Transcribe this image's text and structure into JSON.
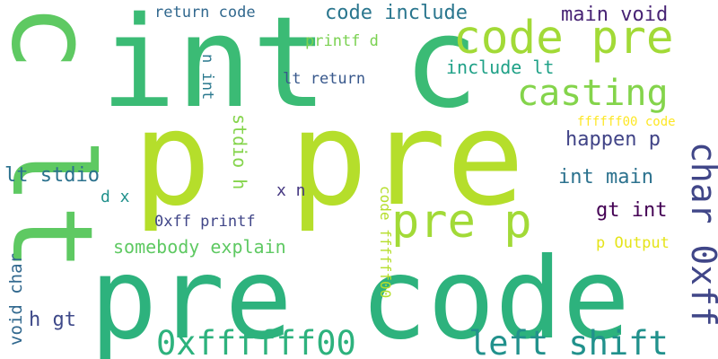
{
  "words": [
    {
      "text": "p pre",
      "color": "#b5de2b"
    },
    {
      "text": "pre code",
      "color": "#2db27d"
    },
    {
      "text": "int c",
      "color": "#3bbb75"
    },
    {
      "text": "c lt",
      "color": "#5ec962"
    },
    {
      "text": "code pre",
      "color": "#a2da37"
    },
    {
      "text": "pre p",
      "color": "#a2da37"
    },
    {
      "text": "casting",
      "color": "#84d44b"
    },
    {
      "text": "char 0xff",
      "color": "#404688"
    },
    {
      "text": "0xffffff00",
      "color": "#2db27d"
    },
    {
      "text": "left shift",
      "color": "#21918c"
    },
    {
      "text": "code include",
      "color": "#2a768e"
    },
    {
      "text": "main void",
      "color": "#482475"
    },
    {
      "text": "happen p",
      "color": "#414487"
    },
    {
      "text": "int main",
      "color": "#2c728e"
    },
    {
      "text": "gt int",
      "color": "#440154"
    },
    {
      "text": "include lt",
      "color": "#1fa187"
    },
    {
      "text": "somebody explain",
      "color": "#5ec962"
    },
    {
      "text": "lt stdio",
      "color": "#2c728e"
    },
    {
      "text": "return code",
      "color": "#31688e"
    },
    {
      "text": "printf d",
      "color": "#7ad151"
    },
    {
      "text": "lt return",
      "color": "#38588c"
    },
    {
      "text": "0xff printf",
      "color": "#404688"
    },
    {
      "text": "ffffff00 code",
      "color": "#fde725"
    },
    {
      "text": "p Output",
      "color": "#e5e419"
    },
    {
      "text": "void char",
      "color": "#31688e"
    },
    {
      "text": "h gt",
      "color": "#3e4989"
    },
    {
      "text": "stdio h",
      "color": "#84d44b"
    },
    {
      "text": "code ffffff00",
      "color": "#b5de2b"
    },
    {
      "text": "n int",
      "color": "#2a788e"
    },
    {
      "text": "x n",
      "color": "#453781"
    },
    {
      "text": "d x",
      "color": "#21918c"
    }
  ]
}
